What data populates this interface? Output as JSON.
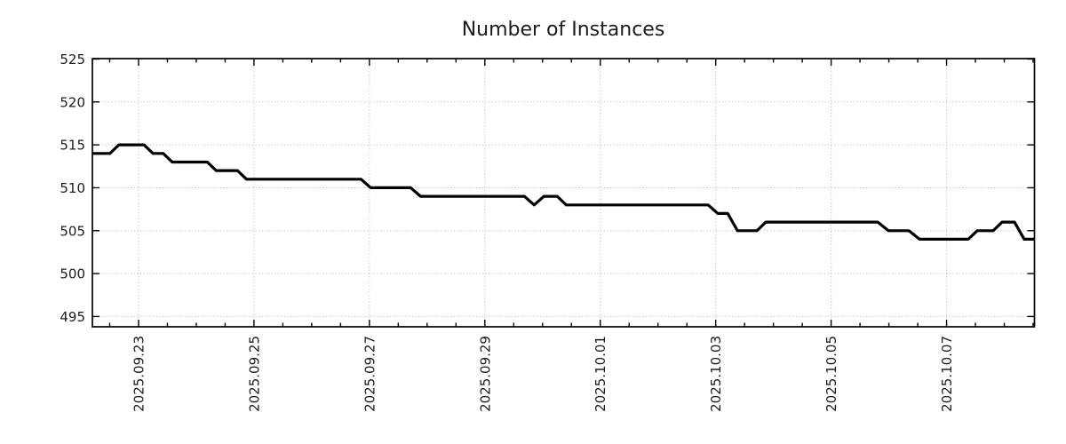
{
  "chart_data": {
    "type": "line",
    "title": "Number of Instances",
    "legend": false,
    "grid": "dotted major gridlines both axes",
    "x_axis": {
      "label": "",
      "tick_labels": [
        "2025.09.23",
        "2025.09.25",
        "2025.09.27",
        "2025.09.29",
        "2025.10.01",
        "2025.10.03",
        "2025.10.05",
        "2025.10.07"
      ],
      "tick_positions_days": [
        1,
        3,
        5,
        7,
        9,
        11,
        13,
        15
      ],
      "minor_tick_step_days": 0.5,
      "range_days": [
        0.2,
        16.523
      ],
      "days_since": "2025-09-22"
    },
    "y_axis": {
      "label": "",
      "tick_labels": [
        "495",
        "500",
        "505",
        "510",
        "515",
        "520",
        "525"
      ],
      "tick_values": [
        495,
        500,
        505,
        510,
        515,
        520,
        525
      ],
      "range": [
        493.8,
        525.05
      ]
    },
    "series": [
      {
        "name": "Number of Instances",
        "sampling": "approx. every 4 hours, step-like changes",
        "points": [
          [
            0.2,
            514
          ],
          [
            0.505,
            514
          ],
          [
            0.658,
            515
          ],
          [
            1.095,
            515
          ],
          [
            1.249,
            514
          ],
          [
            1.428,
            514
          ],
          [
            1.582,
            513
          ],
          [
            2.192,
            513
          ],
          [
            2.346,
            512
          ],
          [
            2.715,
            512
          ],
          [
            2.869,
            511
          ],
          [
            4.854,
            511
          ],
          [
            5.023,
            510
          ],
          [
            5.715,
            510
          ],
          [
            5.885,
            509
          ],
          [
            7.685,
            509
          ],
          [
            7.854,
            508
          ],
          [
            8.023,
            509
          ],
          [
            8.254,
            509
          ],
          [
            8.408,
            508
          ],
          [
            10.869,
            508
          ],
          [
            11.038,
            507
          ],
          [
            11.208,
            507
          ],
          [
            11.377,
            505
          ],
          [
            11.715,
            505
          ],
          [
            11.869,
            506
          ],
          [
            13.808,
            506
          ],
          [
            13.992,
            505
          ],
          [
            14.346,
            505
          ],
          [
            14.531,
            504
          ],
          [
            15.377,
            504
          ],
          [
            15.531,
            505
          ],
          [
            15.808,
            505
          ],
          [
            15.962,
            506
          ],
          [
            16.177,
            506
          ],
          [
            16.346,
            504
          ],
          [
            16.523,
            504
          ]
        ]
      }
    ],
    "value_summary": {
      "start_value": 514,
      "max_value": 515,
      "min_value": 504,
      "end_value": 504
    },
    "colors": {
      "line": "#000000",
      "grid": "#b3b3b3",
      "frame": "#000000",
      "text": "#1c1c1c",
      "background": "#ffffff"
    }
  }
}
